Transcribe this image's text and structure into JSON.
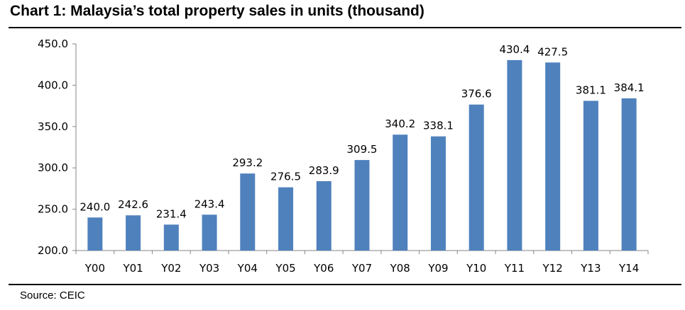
{
  "header": {
    "title": "Chart 1: Malaysia’s total property sales in units (thousand)"
  },
  "footer": {
    "source": "Source: CEIC"
  },
  "chart_data": {
    "type": "bar",
    "title": "Chart 1: Malaysia’s total property sales in units (thousand)",
    "xlabel": "",
    "ylabel": "",
    "categories": [
      "Y00",
      "Y01",
      "Y02",
      "Y03",
      "Y04",
      "Y05",
      "Y06",
      "Y07",
      "Y08",
      "Y09",
      "Y10",
      "Y11",
      "Y12",
      "Y13",
      "Y14"
    ],
    "values": [
      240.0,
      242.6,
      231.4,
      243.4,
      293.2,
      276.5,
      283.9,
      309.5,
      340.2,
      338.1,
      376.6,
      430.4,
      427.5,
      381.1,
      384.1
    ],
    "ylim": [
      200.0,
      450.0
    ],
    "yticks": [
      "200.0",
      "250.0",
      "300.0",
      "350.0",
      "400.0",
      "450.0"
    ],
    "data_labels": true,
    "grid": false,
    "legend": "none",
    "bar_color": "#4F81BD"
  }
}
